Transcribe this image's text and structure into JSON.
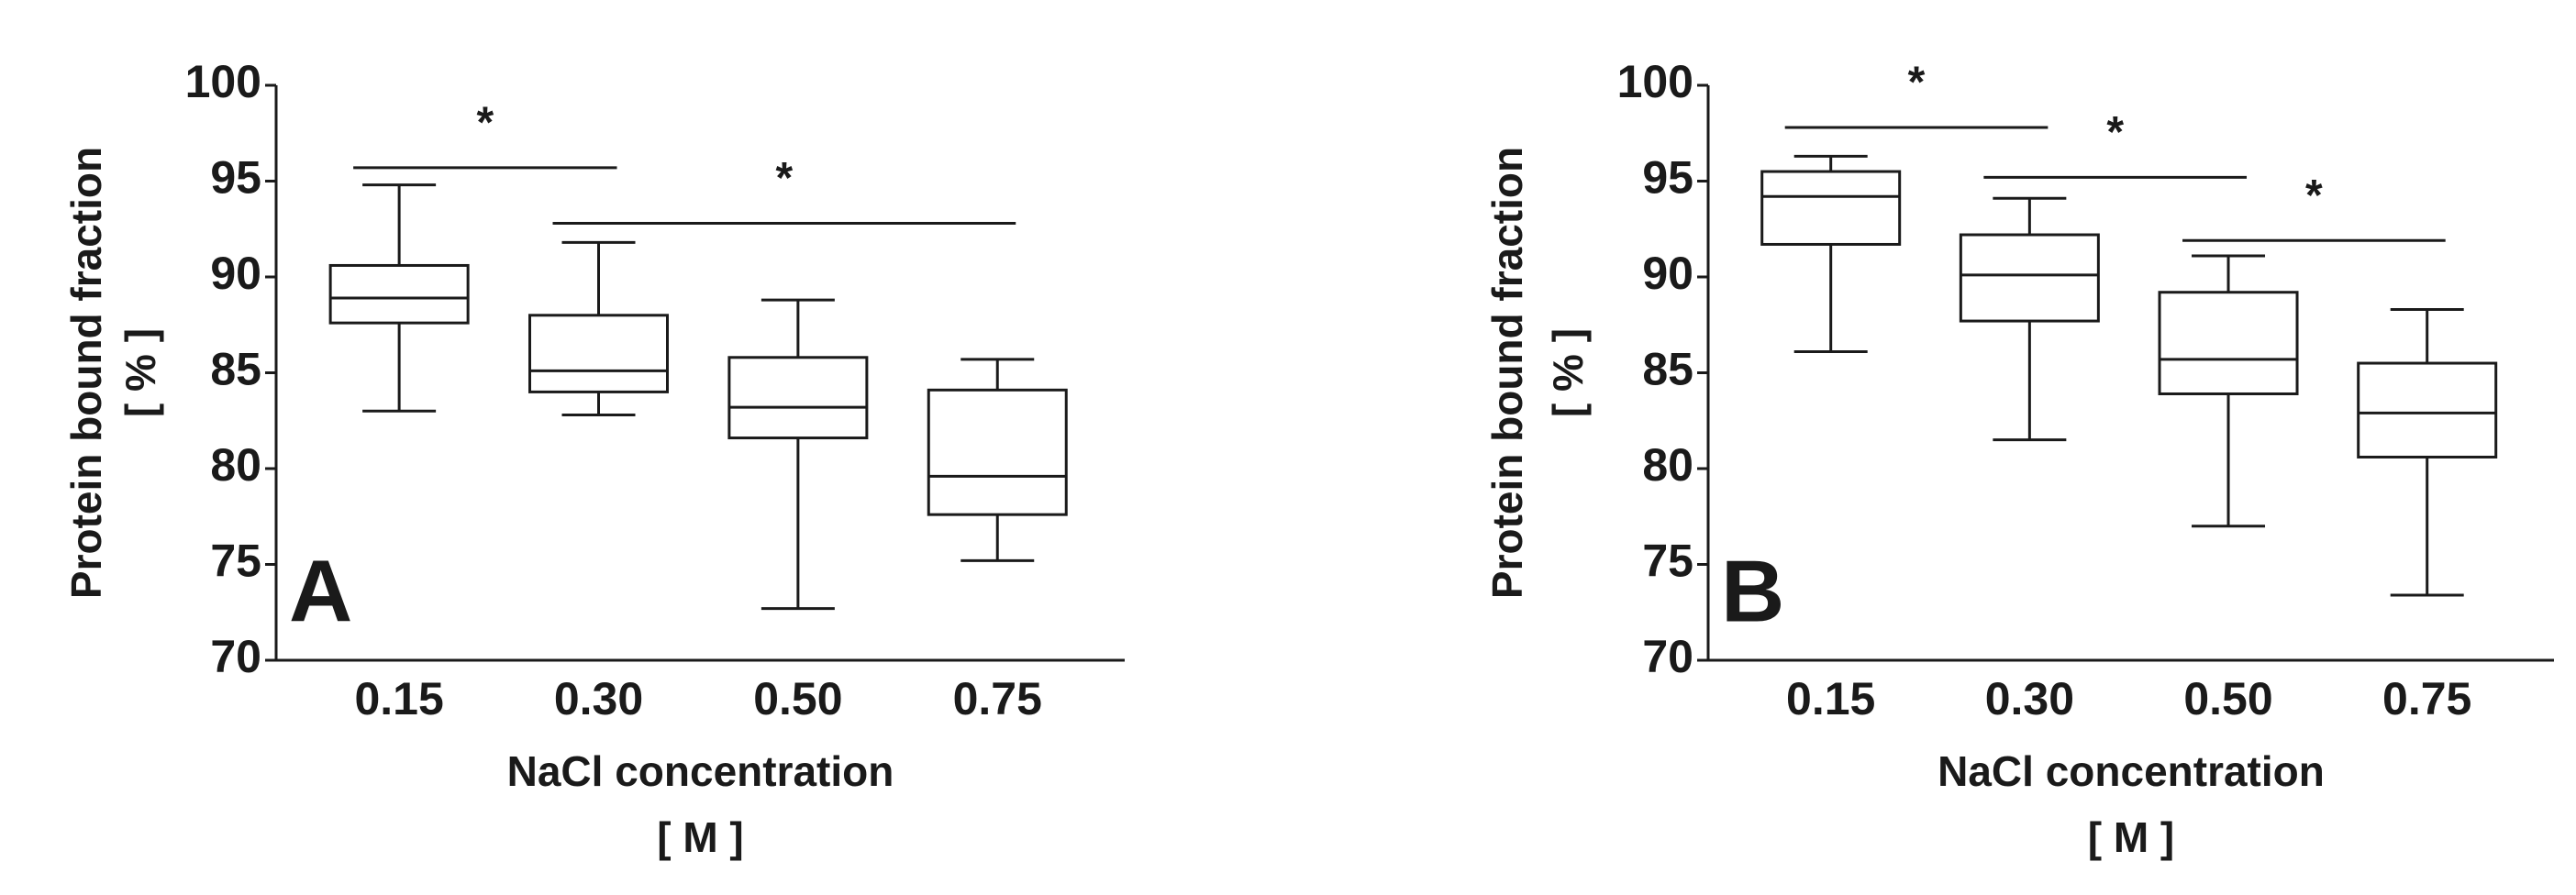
{
  "chart_data": [
    {
      "type": "box",
      "annotation": "A",
      "ylabel": [
        "Protein bound fraction",
        "[ % ]"
      ],
      "xlabel": [
        "NaCl concentration",
        "[ M ]"
      ],
      "categories": [
        "0.15",
        "0.30",
        "0.50",
        "0.75"
      ],
      "boxes": [
        {
          "min": 83,
          "q1": 87.6,
          "median": 88.9,
          "q3": 90.6,
          "max": 94.8
        },
        {
          "min": 82.8,
          "q1": 84,
          "median": 85.1,
          "q3": 88,
          "max": 91.8
        },
        {
          "min": 72.7,
          "q1": 81.6,
          "median": 83.2,
          "q3": 85.8,
          "max": 88.8
        },
        {
          "min": 75.2,
          "q1": 77.6,
          "median": 79.6,
          "q3": 84.1,
          "max": 85.7
        }
      ],
      "significance": [
        {
          "from": 0,
          "to": 1,
          "y": 95.7,
          "label": "*"
        },
        {
          "from": 1,
          "to": 3,
          "y": 92.8,
          "label": "*"
        }
      ],
      "ylim": [
        70,
        100
      ],
      "yticks": [
        70,
        75,
        80,
        85,
        90,
        95,
        100
      ],
      "color": "#1a1a1a"
    },
    {
      "type": "box",
      "annotation": "B",
      "ylabel": [
        "Protein bound fraction",
        "[ % ]"
      ],
      "xlabel": [
        "NaCl concentration",
        "[ M ]"
      ],
      "categories": [
        "0.15",
        "0.30",
        "0.50",
        "0.75"
      ],
      "boxes": [
        {
          "min": 86.1,
          "q1": 91.7,
          "median": 94.2,
          "q3": 95.5,
          "max": 96.3
        },
        {
          "min": 81.5,
          "q1": 87.7,
          "median": 90.1,
          "q3": 92.2,
          "max": 94.1
        },
        {
          "min": 77,
          "q1": 83.9,
          "median": 85.7,
          "q3": 89.2,
          "max": 91.1
        },
        {
          "min": 73.4,
          "q1": 80.6,
          "median": 82.9,
          "q3": 85.5,
          "max": 88.3
        }
      ],
      "significance": [
        {
          "from": 0,
          "to": 1,
          "y": 97.8,
          "label": "*"
        },
        {
          "from": 1,
          "to": 2,
          "y": 95.2,
          "label": "*"
        },
        {
          "from": 2,
          "to": 3,
          "y": 91.9,
          "label": "*"
        }
      ],
      "ylim": [
        70,
        100
      ],
      "yticks": [
        70,
        75,
        80,
        85,
        90,
        95,
        100
      ],
      "color": "#1a1a1a"
    }
  ]
}
